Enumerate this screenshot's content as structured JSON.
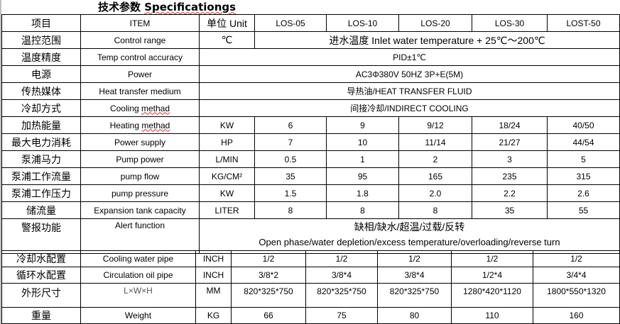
{
  "title": {
    "cn": "技术参数",
    "en": "Specificationgs"
  },
  "header": {
    "cn": "项目",
    "en": "ITEM",
    "unit": "单位 Unit",
    "models": [
      "LOS-05",
      "LOS-10",
      "LOS-20",
      "LOS-30",
      "LOST-50"
    ]
  },
  "spanned_rows": [
    {
      "cn": "温控范围",
      "en": "Control range",
      "unit": "℃",
      "value": "进水温度 Inlet water temperature + 25℃～200℃"
    },
    {
      "cn": "温度精度",
      "en": "Temp control accuracy",
      "value": "PID±1℃"
    },
    {
      "cn": "电源",
      "en": "Power",
      "value": "AC3Φ380V 50HZ 3P+E(5M)"
    },
    {
      "cn": "传热媒体",
      "en": "Heat transfer medium",
      "value": "导热油/HEAT TRANSFER FLUID"
    },
    {
      "cn": "冷却方式",
      "en": "Cooling methad",
      "value": "间接冷却/INDIRECT COOLING"
    }
  ],
  "value_rows": [
    {
      "cn": "加热能量",
      "en": "Heating methad",
      "unit": "KW",
      "values": [
        "6",
        "9",
        "9/12",
        "18/24",
        "40/50"
      ]
    },
    {
      "cn": "最大电力消耗",
      "en": "Power supply",
      "unit": "HP",
      "values": [
        "7",
        "10",
        "11/14",
        "21/27",
        "44/54"
      ]
    },
    {
      "cn": "泵浦马力",
      "en": "Pump power",
      "unit": "L/MIN",
      "values": [
        "0.5",
        "1",
        "2",
        "3",
        "5"
      ]
    },
    {
      "cn": "泵浦工作流量",
      "en": "pump flow",
      "unit": "KG/CM²",
      "values": [
        "35",
        "95",
        "165",
        "235",
        "315"
      ]
    },
    {
      "cn": "泵浦工作压力",
      "en": "pump pressure",
      "unit": "KW",
      "values": [
        "1.5",
        "1.8",
        "2.0",
        "2.2",
        "2.6"
      ]
    },
    {
      "cn": "储流量",
      "en": "Expansion tank capacity",
      "unit": "LITER",
      "values": [
        "8",
        "8",
        "8",
        "35",
        "55"
      ]
    }
  ],
  "alert": {
    "cn": "警报功能",
    "en": "Alert function",
    "value_cn": "缺相/缺水/超温/过载/反转",
    "value_en": "Open phase/water depletion/excess temperature/overloading/reverse turn"
  },
  "bottom_rows": [
    {
      "cn": "冷却水配置",
      "en": "Cooling water pipe",
      "unit": "INCH",
      "values": [
        "1/2",
        "1/2",
        "1/2",
        "1/2",
        "1/2"
      ]
    },
    {
      "cn": "循环水配置",
      "en": "Circulation oil pipe",
      "unit": "INCH",
      "values": [
        "3/8*2",
        "3/8*4",
        "3/8*4",
        "1/2*4",
        "3/4*4"
      ]
    },
    {
      "cn": "外形尺寸",
      "en": "L×W×H",
      "unit": "MM",
      "values": [
        "820*325*750",
        "820*325*750",
        "820*325*750",
        "1280*420*1120",
        "1800*550*1320"
      ]
    },
    {
      "cn": "重量",
      "en": "Weight",
      "unit": "KG",
      "values": [
        "66",
        "75",
        "80",
        "110",
        "160"
      ]
    }
  ]
}
